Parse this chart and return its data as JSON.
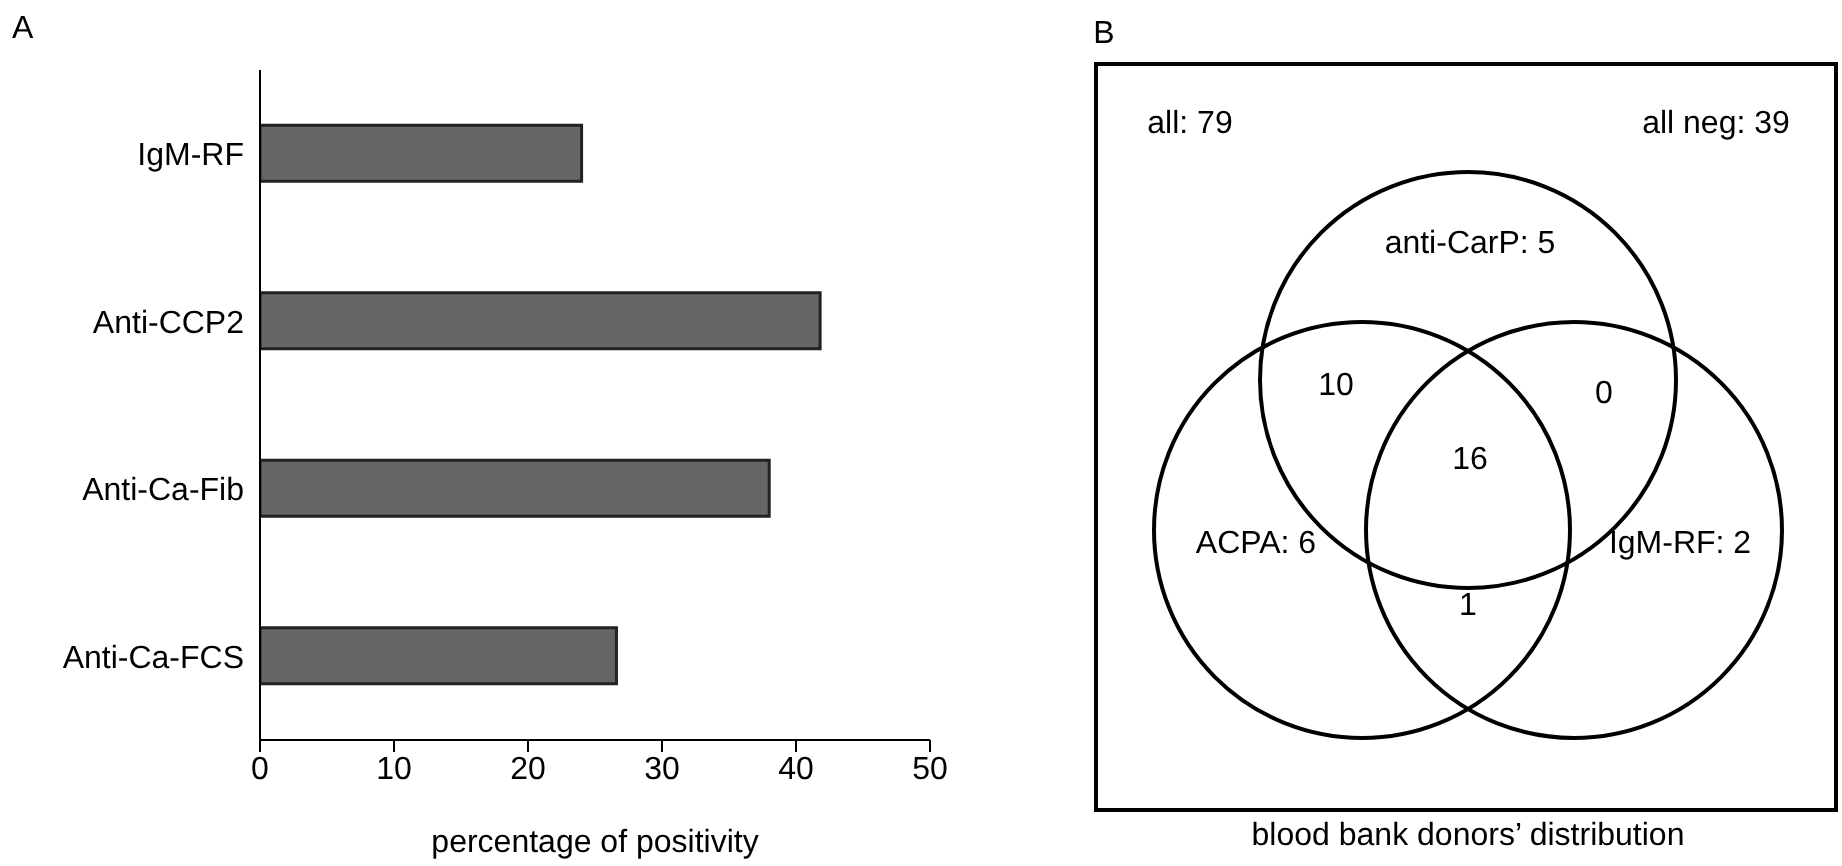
{
  "chart_data": [
    {
      "type": "bar",
      "orientation": "horizontal",
      "title": "A",
      "xlabel": "percentage of positivity",
      "categories": [
        "IgM-RF",
        "Anti-CCP2",
        "Anti-Ca-Fib",
        "Anti-Ca-FCS"
      ],
      "values": [
        24.0,
        41.8,
        38.0,
        26.6
      ],
      "color": "#666666",
      "xlim": [
        0,
        50
      ],
      "xticks": [
        0,
        10,
        20,
        30,
        40,
        50
      ]
    },
    {
      "type": "other",
      "title": "B",
      "xlabel": "blood bank donors’ distribution",
      "annotations": [
        "all: 79",
        "all neg: 39",
        "anti-CarP: 5",
        "ACPA: 6",
        "IgM-RF: 2",
        "10",
        "0",
        "1",
        "16"
      ]
    }
  ]
}
